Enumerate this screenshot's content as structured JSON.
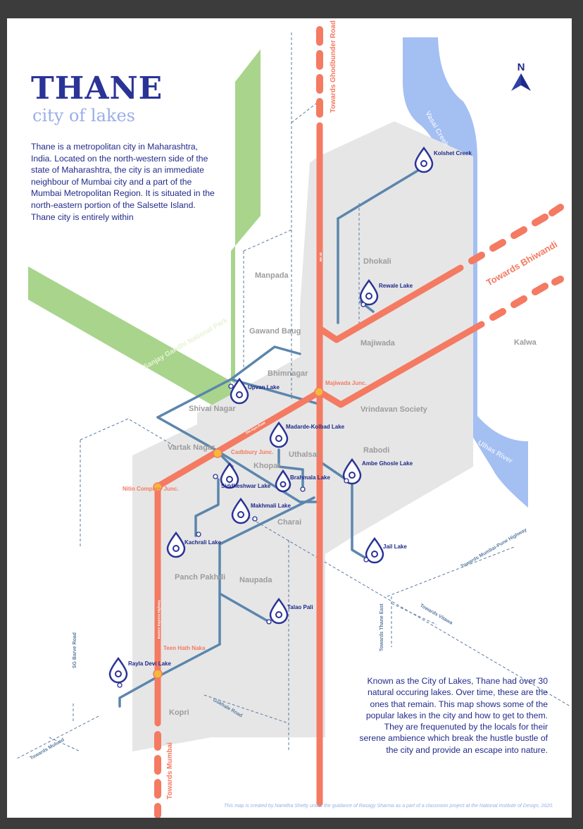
{
  "title": "THANE",
  "subtitle": "city of lakes",
  "intro_text": " Thane is a metropolitan city in Maharashtra, India. Located on the north-western side of the state of Maharashtra, the city is an immediate neighbour of Mumbai city and a part of the Mumbai Metropolitan Region. It is situated in the north-eastern portion of the Salsette Island. Thane city is entirely within",
  "outro_text": "Known as the City of Lakes, Thane had over 30 natural occuring lakes. Over time, these are the ones that remain. This map shows some of the popular lakes in the city and how to get to them. They are frequenuted by the locals for their serene ambience which break the hustle bustle of the city and provide an escape into nature.",
  "credit": "This map is created by Namitha Shetty under the guidance of Rasagy Sharma as a part of a classroom project at the National Institute of Design, 2020.",
  "north_label": "N",
  "colors": {
    "title": "#2a3396",
    "subtitle": "#9aaee8",
    "park": "#a8d48c",
    "water": "#a4bff2",
    "city_area": "#e6e6e6",
    "highway": "#f47a62",
    "road": "#5b86ad",
    "lake_pin": "#2a3396",
    "junction": "#f5b93a"
  },
  "regions": {
    "park": "Sanjay Gandhi National Park",
    "creek": "Vasai Creek",
    "river": "Ulhas River",
    "kalwa": "Kalwa"
  },
  "highway_labels": {
    "ghodbunder": "Towards Ghodbunder Road",
    "bhiwandi": "Towards Bhiwandi",
    "mumbai": "Towards Mumbai",
    "nh48": "NH 48",
    "eastern_express": "Eastern Express Highway",
    "old_agra": "Old Agra Road"
  },
  "neighbourhoods": [
    "Manpada",
    "Dhokali",
    "Gawand Baug",
    "Majiwada",
    "Bhimnagar",
    "Shivai Nagar",
    "Vrindavan Society",
    "Vartak Nagar",
    "Rabodi",
    "Khopat",
    "Uthalsar",
    "Charai",
    "Panch Pakhdi",
    "Naupada",
    "Kopri"
  ],
  "junctions": [
    "Majiwada Junc.",
    "Cadbbury Junc.",
    "Nitin Company Junc.",
    "Teen Hath Naka"
  ],
  "lakes": [
    "Kolshet Creek",
    "Rewale Lake",
    "Upvan Lake",
    "Madarde-Kolbad Lake",
    "Siddheshwar Lake",
    "Brahmala Lake",
    "Ambe Ghosle Lake",
    "Makhmali Lake",
    "Kachrali Lake",
    "Jail Lake",
    "Talao Pali",
    "Rayla Devi Lake"
  ],
  "direction_labels": {
    "mulund": "Towards Mulund",
    "mumbai_pune": "Towards Mumbai-Pune Highway",
    "vitawa": "Towards Vitawa",
    "thane_east": "Towards Thane East",
    "sg_barve": "SG Barve Road",
    "gokhale": "Gokhale Road"
  }
}
